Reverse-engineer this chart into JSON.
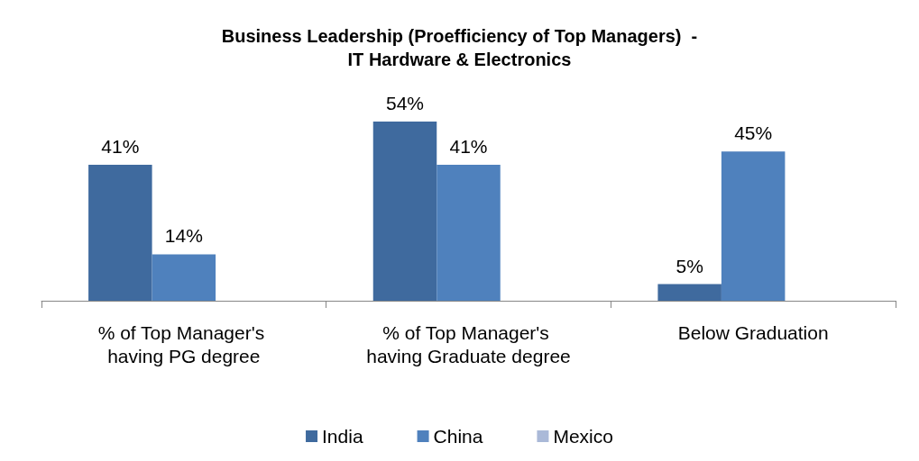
{
  "chart_data": {
    "type": "bar",
    "title": "Business Leadership (Proefficiency of Top Managers)  -\nIT Hardware & Electronics",
    "categories": [
      "% of Top Manager's having PG degree",
      "% of Top Manager's having Graduate degree",
      "Below Graduation"
    ],
    "series": [
      {
        "name": "India",
        "color": "#3f6a9e",
        "values": [
          41,
          54,
          5
        ],
        "value_labels": [
          "41%",
          "54%",
          "5%"
        ]
      },
      {
        "name": "China",
        "color": "#4f81bd",
        "values": [
          14,
          41,
          45
        ],
        "value_labels": [
          "14%",
          "41%",
          "45%"
        ]
      },
      {
        "name": "Mexico",
        "color": "#aab9d8",
        "values": [
          null,
          null,
          null
        ]
      }
    ],
    "legend": "bottom"
  }
}
